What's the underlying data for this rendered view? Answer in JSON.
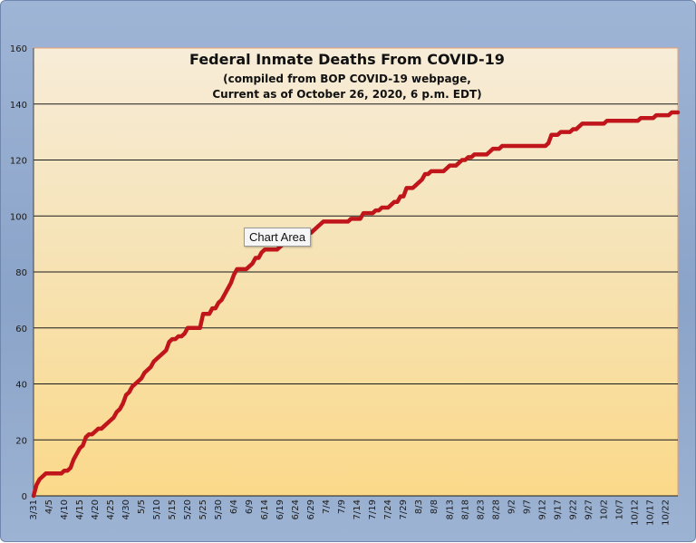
{
  "chart_data": {
    "type": "line",
    "title": "Federal Inmate Deaths From COVID-19",
    "subtitle_lines": [
      "(compiled from BOP COVID-19 webpage,",
      "Current as of October 26, 2020, 6 p.m. EDT)"
    ],
    "xlabel": "",
    "ylabel": "",
    "ylim": [
      0,
      160
    ],
    "yticks": [
      0,
      20,
      40,
      60,
      80,
      100,
      120,
      140,
      160
    ],
    "grid": true,
    "legend": "none",
    "x_tick_labels": [
      "3/31",
      "4/5",
      "4/10",
      "4/15",
      "4/20",
      "4/25",
      "4/30",
      "5/5",
      "5/10",
      "5/15",
      "5/20",
      "5/25",
      "5/30",
      "6/4",
      "6/9",
      "6/14",
      "6/19",
      "6/24",
      "6/29",
      "7/4",
      "7/9",
      "7/14",
      "7/19",
      "7/24",
      "7/29",
      "8/3",
      "8/8",
      "8/13",
      "8/18",
      "8/23",
      "8/28",
      "9/2",
      "9/7",
      "9/12",
      "9/17",
      "9/22",
      "9/27",
      "10/2",
      "10/7",
      "10/12",
      "10/17",
      "10/22"
    ],
    "series": [
      {
        "color": "#c0161b",
        "points": [
          [
            "3/31",
            0
          ],
          [
            "4/1",
            4
          ],
          [
            "4/2",
            6
          ],
          [
            "4/3",
            7
          ],
          [
            "4/4",
            8
          ],
          [
            "4/5",
            8
          ],
          [
            "4/6",
            8
          ],
          [
            "4/7",
            8
          ],
          [
            "4/8",
            8
          ],
          [
            "4/9",
            8
          ],
          [
            "4/10",
            9
          ],
          [
            "4/11",
            9
          ],
          [
            "4/12",
            10
          ],
          [
            "4/13",
            13
          ],
          [
            "4/14",
            15
          ],
          [
            "4/15",
            17
          ],
          [
            "4/16",
            18
          ],
          [
            "4/17",
            21
          ],
          [
            "4/18",
            22
          ],
          [
            "4/19",
            22
          ],
          [
            "4/20",
            23
          ],
          [
            "4/21",
            24
          ],
          [
            "4/22",
            24
          ],
          [
            "4/23",
            25
          ],
          [
            "4/24",
            26
          ],
          [
            "4/25",
            27
          ],
          [
            "4/26",
            28
          ],
          [
            "4/27",
            30
          ],
          [
            "4/28",
            31
          ],
          [
            "4/29",
            33
          ],
          [
            "4/30",
            36
          ],
          [
            "5/1",
            37
          ],
          [
            "5/2",
            39
          ],
          [
            "5/3",
            40
          ],
          [
            "5/4",
            41
          ],
          [
            "5/5",
            42
          ],
          [
            "5/6",
            44
          ],
          [
            "5/7",
            45
          ],
          [
            "5/8",
            46
          ],
          [
            "5/9",
            48
          ],
          [
            "5/10",
            49
          ],
          [
            "5/11",
            50
          ],
          [
            "5/12",
            51
          ],
          [
            "5/13",
            52
          ],
          [
            "5/14",
            55
          ],
          [
            "5/15",
            56
          ],
          [
            "5/16",
            56
          ],
          [
            "5/17",
            57
          ],
          [
            "5/18",
            57
          ],
          [
            "5/19",
            58
          ],
          [
            "5/20",
            60
          ],
          [
            "5/21",
            60
          ],
          [
            "5/22",
            60
          ],
          [
            "5/23",
            60
          ],
          [
            "5/24",
            60
          ],
          [
            "5/25",
            65
          ],
          [
            "5/26",
            65
          ],
          [
            "5/27",
            65
          ],
          [
            "5/28",
            67
          ],
          [
            "5/29",
            67
          ],
          [
            "5/30",
            69
          ],
          [
            "5/31",
            70
          ],
          [
            "6/1",
            72
          ],
          [
            "6/2",
            74
          ],
          [
            "6/3",
            76
          ],
          [
            "6/4",
            79
          ],
          [
            "6/5",
            81
          ],
          [
            "6/6",
            81
          ],
          [
            "6/7",
            81
          ],
          [
            "6/8",
            81
          ],
          [
            "6/9",
            82
          ],
          [
            "6/10",
            83
          ],
          [
            "6/11",
            85
          ],
          [
            "6/12",
            85
          ],
          [
            "6/13",
            87
          ],
          [
            "6/14",
            88
          ],
          [
            "6/15",
            88
          ],
          [
            "6/16",
            88
          ],
          [
            "6/17",
            88
          ],
          [
            "6/18",
            88
          ],
          [
            "6/19",
            89
          ],
          [
            "6/20",
            90
          ],
          [
            "6/21",
            91
          ],
          [
            "6/22",
            92
          ],
          [
            "6/23",
            93
          ],
          [
            "6/24",
            93
          ],
          [
            "6/25",
            93
          ],
          [
            "6/26",
            94
          ],
          [
            "6/27",
            94
          ],
          [
            "6/28",
            94
          ],
          [
            "6/29",
            94
          ],
          [
            "6/30",
            95
          ],
          [
            "7/1",
            96
          ],
          [
            "7/2",
            97
          ],
          [
            "7/3",
            98
          ],
          [
            "7/4",
            98
          ],
          [
            "7/5",
            98
          ],
          [
            "7/6",
            98
          ],
          [
            "7/7",
            98
          ],
          [
            "7/8",
            98
          ],
          [
            "7/9",
            98
          ],
          [
            "7/10",
            98
          ],
          [
            "7/11",
            98
          ],
          [
            "7/12",
            99
          ],
          [
            "7/13",
            99
          ],
          [
            "7/14",
            99
          ],
          [
            "7/15",
            99
          ],
          [
            "7/16",
            101
          ],
          [
            "7/17",
            101
          ],
          [
            "7/18",
            101
          ],
          [
            "7/19",
            101
          ],
          [
            "7/20",
            102
          ],
          [
            "7/21",
            102
          ],
          [
            "7/22",
            103
          ],
          [
            "7/23",
            103
          ],
          [
            "7/24",
            103
          ],
          [
            "7/25",
            104
          ],
          [
            "7/26",
            105
          ],
          [
            "7/27",
            105
          ],
          [
            "7/28",
            107
          ],
          [
            "7/29",
            107
          ],
          [
            "7/30",
            110
          ],
          [
            "7/31",
            110
          ],
          [
            "8/1",
            110
          ],
          [
            "8/2",
            111
          ],
          [
            "8/3",
            112
          ],
          [
            "8/4",
            113
          ],
          [
            "8/5",
            115
          ],
          [
            "8/6",
            115
          ],
          [
            "8/7",
            116
          ],
          [
            "8/8",
            116
          ],
          [
            "8/9",
            116
          ],
          [
            "8/10",
            116
          ],
          [
            "8/11",
            116
          ],
          [
            "8/12",
            117
          ],
          [
            "8/13",
            118
          ],
          [
            "8/14",
            118
          ],
          [
            "8/15",
            118
          ],
          [
            "8/16",
            119
          ],
          [
            "8/17",
            120
          ],
          [
            "8/18",
            120
          ],
          [
            "8/19",
            121
          ],
          [
            "8/20",
            121
          ],
          [
            "8/21",
            122
          ],
          [
            "8/22",
            122
          ],
          [
            "8/23",
            122
          ],
          [
            "8/24",
            122
          ],
          [
            "8/25",
            122
          ],
          [
            "8/26",
            123
          ],
          [
            "8/27",
            124
          ],
          [
            "8/28",
            124
          ],
          [
            "8/29",
            124
          ],
          [
            "8/30",
            125
          ],
          [
            "8/31",
            125
          ],
          [
            "9/1",
            125
          ],
          [
            "9/2",
            125
          ],
          [
            "9/3",
            125
          ],
          [
            "9/4",
            125
          ],
          [
            "9/5",
            125
          ],
          [
            "9/6",
            125
          ],
          [
            "9/7",
            125
          ],
          [
            "9/8",
            125
          ],
          [
            "9/9",
            125
          ],
          [
            "9/10",
            125
          ],
          [
            "9/11",
            125
          ],
          [
            "9/12",
            125
          ],
          [
            "9/13",
            125
          ],
          [
            "9/14",
            126
          ],
          [
            "9/15",
            129
          ],
          [
            "9/16",
            129
          ],
          [
            "9/17",
            129
          ],
          [
            "9/18",
            130
          ],
          [
            "9/19",
            130
          ],
          [
            "9/20",
            130
          ],
          [
            "9/21",
            130
          ],
          [
            "9/22",
            131
          ],
          [
            "9/23",
            131
          ],
          [
            "9/24",
            132
          ],
          [
            "9/25",
            133
          ],
          [
            "9/26",
            133
          ],
          [
            "9/27",
            133
          ],
          [
            "9/28",
            133
          ],
          [
            "9/29",
            133
          ],
          [
            "9/30",
            133
          ],
          [
            "10/1",
            133
          ],
          [
            "10/2",
            133
          ],
          [
            "10/3",
            134
          ],
          [
            "10/4",
            134
          ],
          [
            "10/5",
            134
          ],
          [
            "10/6",
            134
          ],
          [
            "10/7",
            134
          ],
          [
            "10/8",
            134
          ],
          [
            "10/9",
            134
          ],
          [
            "10/10",
            134
          ],
          [
            "10/11",
            134
          ],
          [
            "10/12",
            134
          ],
          [
            "10/13",
            134
          ],
          [
            "10/14",
            135
          ],
          [
            "10/15",
            135
          ],
          [
            "10/16",
            135
          ],
          [
            "10/17",
            135
          ],
          [
            "10/18",
            135
          ],
          [
            "10/19",
            136
          ],
          [
            "10/20",
            136
          ],
          [
            "10/21",
            136
          ],
          [
            "10/22",
            136
          ],
          [
            "10/23",
            136
          ],
          [
            "10/24",
            137
          ],
          [
            "10/25",
            137
          ],
          [
            "10/26",
            137
          ]
        ]
      }
    ]
  },
  "tooltip": {
    "label": "Chart Area"
  }
}
